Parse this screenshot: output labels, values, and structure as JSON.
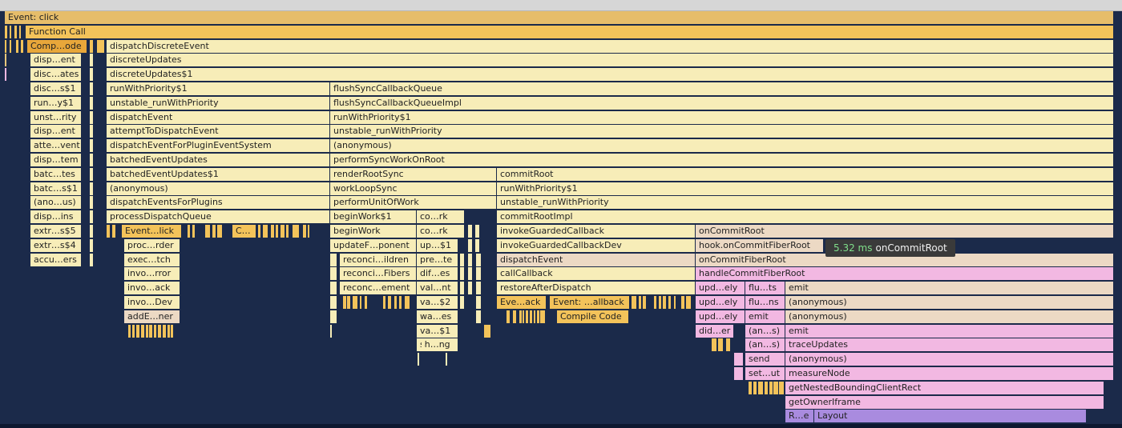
{
  "tooltip": {
    "duration": "5.32 ms",
    "name": "onCommitRoot"
  },
  "frames": [
    {
      "d": 0,
      "label": "Event: click",
      "c": "H"
    },
    {
      "d": 1,
      "label": "Function Call",
      "c": "O"
    },
    {
      "d": 2,
      "label": "Comp…ode",
      "c": "Oh"
    },
    {
      "d": 2,
      "label": "dispatchDiscreteEvent",
      "c": "Y"
    },
    {
      "d": 3,
      "label": "disp…ent",
      "c": "Y"
    },
    {
      "d": 3,
      "label": "discreteUpdates",
      "c": "Y"
    },
    {
      "d": 4,
      "label": "disc…ates",
      "c": "Y"
    },
    {
      "d": 4,
      "label": "discreteUpdates$1",
      "c": "Y"
    },
    {
      "d": 5,
      "label": "disc…s$1",
      "c": "Y"
    },
    {
      "d": 5,
      "label": "runWithPriority$1",
      "c": "Y"
    },
    {
      "d": 5,
      "label": "flushSyncCallbackQueue",
      "c": "Y"
    },
    {
      "d": 6,
      "label": "run…y$1",
      "c": "Y"
    },
    {
      "d": 6,
      "label": "unstable_runWithPriority",
      "c": "Y"
    },
    {
      "d": 6,
      "label": "flushSyncCallbackQueueImpl",
      "c": "Y"
    },
    {
      "d": 7,
      "label": "unst…rity",
      "c": "Y"
    },
    {
      "d": 7,
      "label": "dispatchEvent",
      "c": "Y"
    },
    {
      "d": 7,
      "label": "runWithPriority$1",
      "c": "Y"
    },
    {
      "d": 8,
      "label": "disp…ent",
      "c": "Y"
    },
    {
      "d": 8,
      "label": "attemptToDispatchEvent",
      "c": "Y"
    },
    {
      "d": 8,
      "label": "unstable_runWithPriority",
      "c": "Y"
    },
    {
      "d": 9,
      "label": "atte…vent",
      "c": "Y"
    },
    {
      "d": 9,
      "label": "dispatchEventForPluginEventSystem",
      "c": "Y"
    },
    {
      "d": 9,
      "label": "(anonymous)",
      "c": "Y"
    },
    {
      "d": 10,
      "label": "disp…tem",
      "c": "Y"
    },
    {
      "d": 10,
      "label": "batchedEventUpdates",
      "c": "Y"
    },
    {
      "d": 10,
      "label": "performSyncWorkOnRoot",
      "c": "Y"
    },
    {
      "d": 11,
      "label": "batc…tes",
      "c": "Y"
    },
    {
      "d": 11,
      "label": "batchedEventUpdates$1",
      "c": "Y"
    },
    {
      "d": 11,
      "label": "renderRootSync",
      "c": "Y"
    },
    {
      "d": 11,
      "label": "commitRoot",
      "c": "Y"
    },
    {
      "d": 12,
      "label": "batc…s$1",
      "c": "Y"
    },
    {
      "d": 12,
      "label": "(anonymous)",
      "c": "Y"
    },
    {
      "d": 12,
      "label": "workLoopSync",
      "c": "Y"
    },
    {
      "d": 12,
      "label": "runWithPriority$1",
      "c": "Y"
    },
    {
      "d": 13,
      "label": "(ano…us)",
      "c": "Y"
    },
    {
      "d": 13,
      "label": "dispatchEventsForPlugins",
      "c": "Y"
    },
    {
      "d": 13,
      "label": "performUnitOfWork",
      "c": "Y"
    },
    {
      "d": 13,
      "label": "unstable_runWithPriority",
      "c": "Y"
    },
    {
      "d": 14,
      "label": "disp…ins",
      "c": "Y"
    },
    {
      "d": 14,
      "label": "processDispatchQueue",
      "c": "Y"
    },
    {
      "d": 14,
      "label": "beginWork$1",
      "c": "Y"
    },
    {
      "d": 14,
      "label": "co…rk",
      "c": "Y"
    },
    {
      "d": 14,
      "label": "commitRootImpl",
      "c": "Y"
    },
    {
      "d": 15,
      "label": "extr…s$5",
      "c": "Y"
    },
    {
      "d": 15,
      "label": "Event…lick",
      "c": "O"
    },
    {
      "d": 15,
      "label": "C…",
      "c": "O"
    },
    {
      "d": 15,
      "label": "beginWork",
      "c": "Y"
    },
    {
      "d": 15,
      "label": "co…rk",
      "c": "Y"
    },
    {
      "d": 15,
      "label": "invokeGuardedCallback",
      "c": "Y"
    },
    {
      "d": 15,
      "label": "onCommitRoot",
      "c": "T"
    },
    {
      "d": 16,
      "label": "extr…s$4",
      "c": "Y"
    },
    {
      "d": 16,
      "label": "proc…rder",
      "c": "Y"
    },
    {
      "d": 16,
      "label": "updateF…ponent",
      "c": "Y"
    },
    {
      "d": 16,
      "label": "up…$1",
      "c": "Y"
    },
    {
      "d": 16,
      "label": "invokeGuardedCallbackDev",
      "c": "Y"
    },
    {
      "d": 16,
      "label": "hook.onCommitFiberRoot",
      "c": "T"
    },
    {
      "d": 17,
      "label": "accu…ers",
      "c": "Y"
    },
    {
      "d": 17,
      "label": "exec…tch",
      "c": "Y"
    },
    {
      "d": 17,
      "label": "reconci…ildren",
      "c": "Y"
    },
    {
      "d": 17,
      "label": "pre…te",
      "c": "Y"
    },
    {
      "d": 17,
      "label": "dispatchEvent",
      "c": "T"
    },
    {
      "d": 17,
      "label": "onCommitFiberRoot",
      "c": "T"
    },
    {
      "d": 18,
      "label": "invo…rror",
      "c": "Y"
    },
    {
      "d": 18,
      "label": "reconci…Fibers",
      "c": "Y"
    },
    {
      "d": 18,
      "label": "dif…es",
      "c": "Y"
    },
    {
      "d": 18,
      "label": "callCallback",
      "c": "Y"
    },
    {
      "d": 18,
      "label": "handleCommitFiberRoot",
      "c": "P"
    },
    {
      "d": 19,
      "label": "invo…ack",
      "c": "Y"
    },
    {
      "d": 19,
      "label": "reconc…ement",
      "c": "Y"
    },
    {
      "d": 19,
      "label": "val…nt",
      "c": "Y"
    },
    {
      "d": 19,
      "label": "restoreAfterDispatch",
      "c": "Y"
    },
    {
      "d": 19,
      "label": "upd…ely",
      "c": "P"
    },
    {
      "d": 19,
      "label": "flu…ts",
      "c": "P"
    },
    {
      "d": 19,
      "label": "emit",
      "c": "T"
    },
    {
      "d": 20,
      "label": "invo…Dev",
      "c": "Y"
    },
    {
      "d": 20,
      "label": "va…$2",
      "c": "Y"
    },
    {
      "d": 20,
      "label": "Eve…ack",
      "c": "O"
    },
    {
      "d": 20,
      "label": "Event: …allback",
      "c": "O"
    },
    {
      "d": 20,
      "label": "upd…ely",
      "c": "P"
    },
    {
      "d": 20,
      "label": "flu…ns",
      "c": "P"
    },
    {
      "d": 20,
      "label": "(anonymous)",
      "c": "T"
    },
    {
      "d": 21,
      "label": "addE…ner",
      "c": "T"
    },
    {
      "d": 21,
      "label": "wa…es",
      "c": "Y"
    },
    {
      "d": 21,
      "label": "Compile Code",
      "c": "O"
    },
    {
      "d": 21,
      "label": "upd…ely",
      "c": "P"
    },
    {
      "d": 21,
      "label": "emit",
      "c": "P"
    },
    {
      "d": 21,
      "label": "(anonymous)",
      "c": "T"
    },
    {
      "d": 22,
      "label": "va…$1",
      "c": "Y"
    },
    {
      "d": 22,
      "label": "did…er",
      "c": "P"
    },
    {
      "d": 22,
      "label": "(an…s)",
      "c": "P"
    },
    {
      "d": 22,
      "label": "emit",
      "c": "P"
    },
    {
      "d": 23,
      "label": "sh…ng",
      "c": "Y"
    },
    {
      "d": 23,
      "label": "(an…s)",
      "c": "P"
    },
    {
      "d": 23,
      "label": "traceUpdates",
      "c": "P"
    },
    {
      "d": 24,
      "label": "send",
      "c": "P"
    },
    {
      "d": 24,
      "label": "(anonymous)",
      "c": "P"
    },
    {
      "d": 25,
      "label": "set…ut",
      "c": "P"
    },
    {
      "d": 25,
      "label": "measureNode",
      "c": "P"
    },
    {
      "d": 26,
      "label": "getNestedBoundingClientRect",
      "c": "P"
    },
    {
      "d": 27,
      "label": "getOwnerIframe",
      "c": "P"
    },
    {
      "d": 28,
      "label": "R…e",
      "c": "V"
    },
    {
      "d": 28,
      "label": "Layout",
      "c": "V"
    }
  ]
}
